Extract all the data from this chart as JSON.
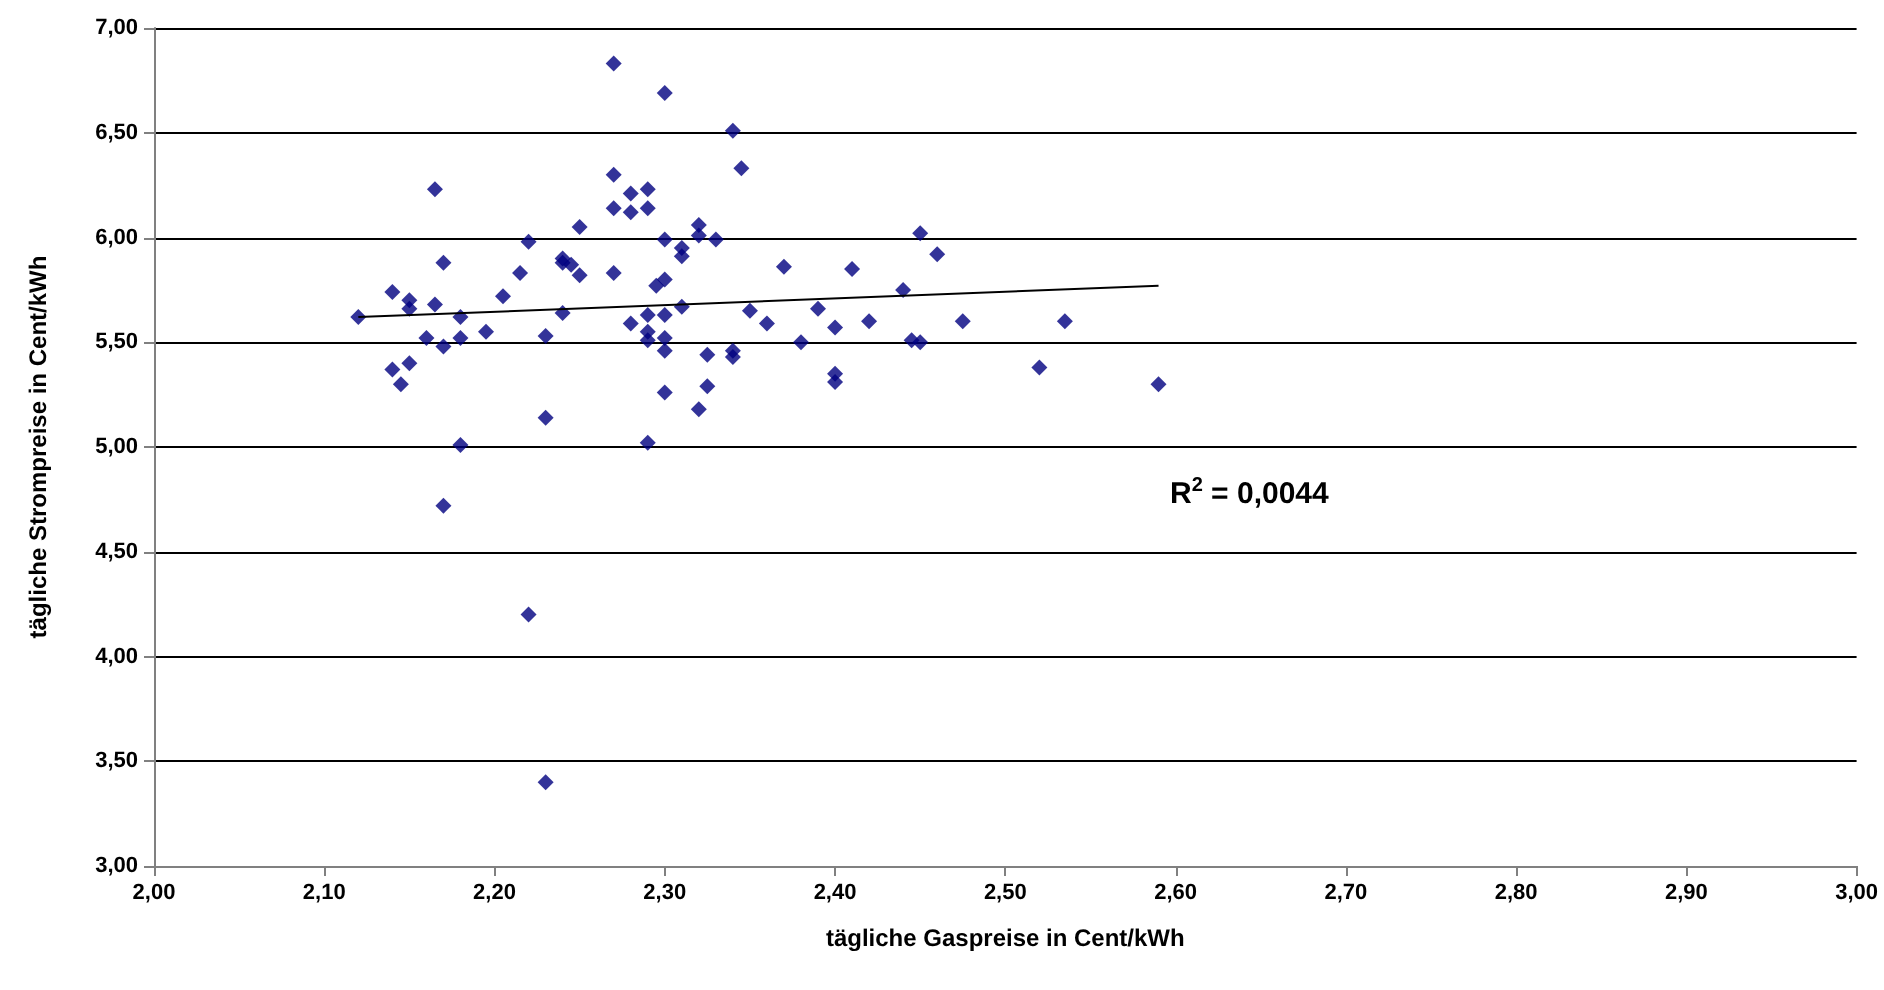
{
  "chart_data": {
    "type": "scatter",
    "xlabel": "tägliche Gaspreise in Cent/kWh",
    "ylabel": "tägliche Strompreise in Cent/kWh",
    "x": [
      2.12,
      2.14,
      2.14,
      2.145,
      2.15,
      2.15,
      2.15,
      2.16,
      2.165,
      2.165,
      2.17,
      2.17,
      2.17,
      2.18,
      2.18,
      2.18,
      2.195,
      2.205,
      2.215,
      2.22,
      2.22,
      2.23,
      2.23,
      2.23,
      2.24,
      2.24,
      2.24,
      2.245,
      2.25,
      2.25,
      2.27,
      2.27,
      2.27,
      2.27,
      2.28,
      2.28,
      2.28,
      2.29,
      2.29,
      2.29,
      2.29,
      2.29,
      2.29,
      2.295,
      2.3,
      2.3,
      2.3,
      2.3,
      2.3,
      2.3,
      2.3,
      2.31,
      2.31,
      2.31,
      2.32,
      2.32,
      2.32,
      2.325,
      2.325,
      2.33,
      2.34,
      2.34,
      2.34,
      2.345,
      2.35,
      2.36,
      2.37,
      2.38,
      2.39,
      2.4,
      2.4,
      2.4,
      2.41,
      2.42,
      2.44,
      2.445,
      2.45,
      2.45,
      2.46,
      2.475,
      2.52,
      2.535,
      2.59
    ],
    "series": [
      {
        "color": "#000080",
        "values": [
          5.62,
          5.74,
          5.37,
          5.3,
          5.7,
          5.66,
          5.4,
          5.52,
          6.23,
          5.68,
          5.88,
          5.48,
          4.72,
          5.62,
          5.52,
          5.01,
          5.55,
          5.72,
          5.83,
          5.98,
          4.2,
          5.53,
          5.14,
          3.4,
          5.9,
          5.88,
          5.64,
          5.87,
          6.05,
          5.82,
          6.83,
          6.3,
          6.14,
          5.83,
          6.21,
          6.12,
          5.59,
          6.23,
          6.14,
          5.63,
          5.55,
          5.51,
          5.02,
          5.77,
          6.69,
          5.99,
          5.8,
          5.63,
          5.52,
          5.46,
          5.26,
          5.95,
          5.91,
          5.67,
          6.06,
          6.01,
          5.18,
          5.44,
          5.29,
          5.99,
          6.51,
          5.46,
          5.43,
          6.33,
          5.65,
          5.59,
          5.86,
          5.5,
          5.66,
          5.57,
          5.35,
          5.31,
          5.85,
          5.6,
          5.75,
          5.51,
          6.02,
          5.5,
          5.92,
          5.6,
          5.38,
          5.6,
          5.3
        ]
      },
      {
        "type": "line",
        "color": "#000000",
        "x": [
          2.12,
          2.59
        ],
        "values": [
          5.62,
          5.77
        ],
        "marker": "none"
      }
    ],
    "marker": "diamond",
    "xlim": [
      2,
      3
    ],
    "xticks": [
      {
        "value": 2,
        "label": "2,00"
      },
      {
        "value": 2.1,
        "label": "2,10"
      },
      {
        "value": 2.2,
        "label": "2,20"
      },
      {
        "value": 2.3,
        "label": "2,30"
      },
      {
        "value": 2.4,
        "label": "2,40"
      },
      {
        "value": 2.5,
        "label": "2,50"
      },
      {
        "value": 2.6,
        "label": "2,60"
      },
      {
        "value": 2.7,
        "label": "2,70"
      },
      {
        "value": 2.8,
        "label": "2,80"
      },
      {
        "value": 2.9,
        "label": "2,90"
      },
      {
        "value": 3,
        "label": "3,00"
      }
    ],
    "ylim": [
      3,
      7
    ],
    "yticks": [
      {
        "value": 3,
        "label": "3,00"
      },
      {
        "value": 3.5,
        "label": "3,50"
      },
      {
        "value": 4,
        "label": "4,00"
      },
      {
        "value": 4.5,
        "label": "4,50"
      },
      {
        "value": 5,
        "label": "5,00"
      },
      {
        "value": 5.5,
        "label": "5,50"
      },
      {
        "value": 6,
        "label": "6,00"
      },
      {
        "value": 6.5,
        "label": "6,50"
      },
      {
        "value": 7,
        "label": "7,00"
      }
    ],
    "grid": "y",
    "annotations": [
      "R$^{2}$ = 0,0044"
    ]
  }
}
